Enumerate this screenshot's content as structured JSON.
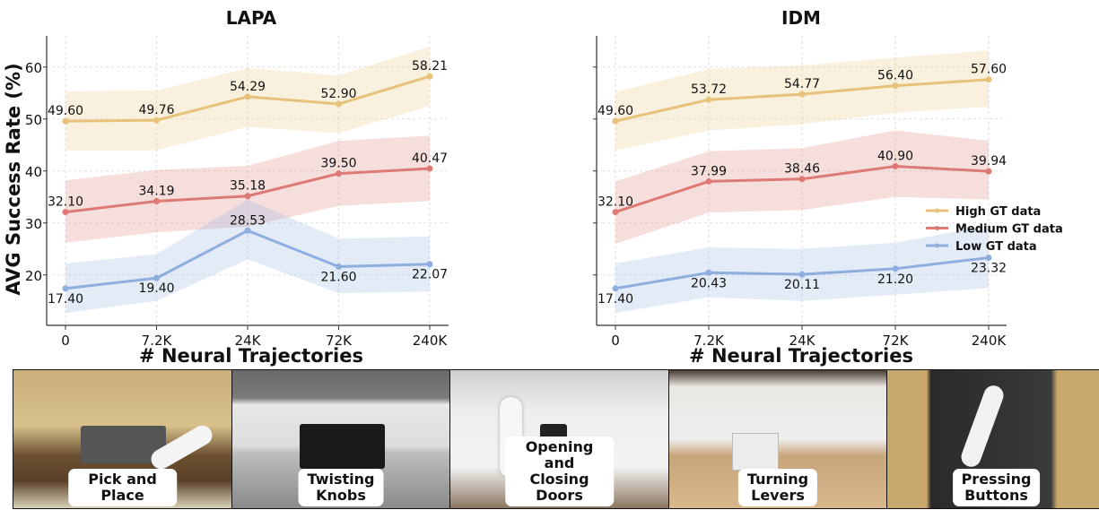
{
  "chart_data": [
    {
      "type": "line",
      "title": "LAPA",
      "xlabel": "# Neural Trajectories",
      "ylabel": "AVG Success Rate (%)",
      "categories": [
        "0",
        "7.2K",
        "24K",
        "72K",
        "240K"
      ],
      "yticks": [
        20,
        30,
        40,
        50,
        60
      ],
      "ylim": [
        10.3,
        66
      ],
      "grid": true,
      "series": [
        {
          "name": "High GT data",
          "color": "#e6c27a",
          "values": [
            49.6,
            49.76,
            54.29,
            52.9,
            58.21
          ],
          "labels": [
            "49.60",
            "49.76",
            "54.29",
            "52.90",
            "58.21"
          ],
          "band_low": [
            44,
            44,
            48.5,
            47.3,
            52.5
          ],
          "band_high": [
            55.3,
            55.5,
            59.8,
            58.4,
            63.9
          ]
        },
        {
          "name": "Medium GT data",
          "color": "#dd7a76",
          "values": [
            32.1,
            34.19,
            35.18,
            39.5,
            40.47
          ],
          "labels": [
            "32.10",
            "34.19",
            "35.18",
            "39.50",
            "40.47"
          ],
          "band_low": [
            26.2,
            28.2,
            29.3,
            33.3,
            34.2
          ],
          "band_high": [
            38.2,
            40.2,
            41,
            45.8,
            46.8
          ]
        },
        {
          "name": "Low GT data",
          "color": "#8eaee0",
          "values": [
            17.4,
            19.4,
            28.53,
            21.6,
            22.07
          ],
          "labels": [
            "17.40",
            "19.40",
            "28.53",
            "21.60",
            "22.07"
          ],
          "band_low": [
            12.7,
            15,
            23,
            16.5,
            16.8
          ],
          "band_high": [
            22.2,
            24,
            34.5,
            27,
            27.4
          ]
        }
      ]
    },
    {
      "type": "line",
      "title": "IDM",
      "xlabel": "# Neural Trajectories",
      "categories": [
        "0",
        "7.2K",
        "24K",
        "72K",
        "240K"
      ],
      "yticks": [
        20,
        30,
        40,
        50,
        60
      ],
      "ylim": [
        10.3,
        66
      ],
      "grid": true,
      "legend": "center-right",
      "series": [
        {
          "name": "High GT data",
          "color": "#e6c27a",
          "values": [
            49.6,
            53.72,
            54.77,
            56.4,
            57.6
          ],
          "labels": [
            "49.60",
            "53.72",
            "54.77",
            "56.40",
            "57.60"
          ],
          "band_low": [
            44,
            47.8,
            49,
            51.2,
            52.4
          ],
          "band_high": [
            55.2,
            59.6,
            60.3,
            61.8,
            63.2
          ]
        },
        {
          "name": "Medium GT data",
          "color": "#dd7a76",
          "values": [
            32.1,
            37.99,
            38.46,
            40.9,
            39.94
          ],
          "labels": [
            "32.10",
            "37.99",
            "38.46",
            "40.90",
            "39.94"
          ],
          "band_low": [
            26,
            32,
            32.5,
            35,
            34.5
          ],
          "band_high": [
            38,
            43.8,
            44.4,
            47.8,
            45.8
          ]
        },
        {
          "name": "Low GT data",
          "color": "#8eaee0",
          "values": [
            17.4,
            20.43,
            20.11,
            21.2,
            23.32
          ],
          "labels": [
            "17.40",
            "20.43",
            "20.11",
            "21.20",
            "23.32"
          ],
          "band_low": [
            12.7,
            15.7,
            15,
            16.2,
            17.5
          ],
          "band_high": [
            22.2,
            25.3,
            25,
            26.2,
            29.5
          ]
        }
      ]
    }
  ],
  "tasks": [
    {
      "label": "Pick and Place"
    },
    {
      "label": "Twisting\nKnobs"
    },
    {
      "label": "Opening and Closing\nDoors"
    },
    {
      "label": "Turning\nLevers"
    },
    {
      "label": "Pressing\nButtons"
    }
  ]
}
